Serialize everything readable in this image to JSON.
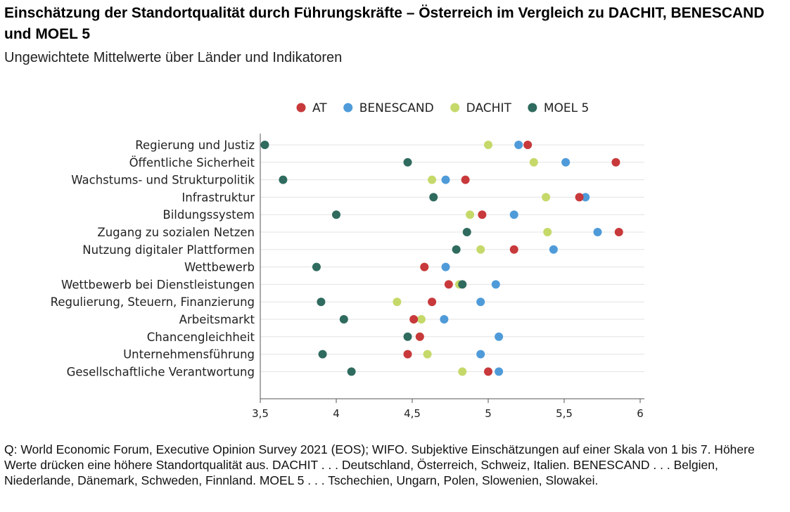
{
  "title": "Einschätzung der Standortqualität durch Führungskräfte – Österreich im Vergleich zu DACHIT, BENESCAND und MOEL 5",
  "subtitle": "Ungewichtete Mittelwerte über Länder und Indikatoren",
  "note": "Q: World Economic Forum, Executive Opinion Survey 2021 (EOS); WIFO. Subjektive Einschätzungen auf einer Skala von 1 bis 7. Höhere Werte drücken eine höhere Standortqualität aus. DACHIT . . . Deutschland, Österreich, Schweiz, Italien. BENESCAND . . . Belgien, Niederlande, Dänemark, Schweden, Finnland. MOEL 5 . . . Tschechien, Ungarn, Polen, Slowenien, Slowakei.",
  "chart_data": {
    "type": "scatter",
    "title": "",
    "xlabel": "",
    "ylabel": "",
    "xlim": [
      3.5,
      6
    ],
    "xticks": [
      3.5,
      4,
      4.5,
      5,
      5.5,
      6
    ],
    "xtick_labels": [
      "3,5",
      "4",
      "4,5",
      "5",
      "5,5",
      "6"
    ],
    "grid": "horizontal",
    "legend_position": "top",
    "categories": [
      "Regierung und Justiz",
      "Öffentliche Sicherheit",
      "Wachstums- und Strukturpolitik",
      "Infrastruktur",
      "Bildungssystem",
      "Zugang zu sozialen Netzen",
      "Nutzung digitaler Plattformen",
      "Wettbewerb",
      "Wettbewerb bei Dienstleistungen",
      "Regulierung, Steuern, Finanzierung",
      "Arbeitsmarkt",
      "Chancengleichheit",
      "Unternehmensführung",
      "Gesellschaftliche Verantwortung"
    ],
    "series": [
      {
        "name": "AT",
        "color": "#c8393b",
        "values": [
          5.26,
          5.84,
          4.85,
          5.6,
          4.96,
          5.86,
          5.17,
          4.58,
          4.74,
          4.63,
          4.51,
          4.55,
          4.47,
          5.0
        ]
      },
      {
        "name": "BENESCAND",
        "color": "#4f9bd9",
        "values": [
          5.2,
          5.51,
          4.72,
          5.64,
          5.17,
          5.72,
          5.43,
          4.72,
          5.05,
          4.95,
          4.71,
          5.07,
          4.95,
          5.07
        ]
      },
      {
        "name": "DACHIT",
        "color": "#c5d96a",
        "values": [
          5.0,
          5.3,
          4.63,
          5.38,
          4.88,
          5.39,
          4.95,
          4.58,
          4.81,
          4.4,
          4.56,
          4.55,
          4.6,
          4.83
        ]
      },
      {
        "name": "MOEL 5",
        "color": "#2f6b5e",
        "values": [
          3.53,
          4.47,
          3.65,
          4.64,
          4.0,
          4.86,
          4.79,
          3.87,
          4.83,
          3.9,
          4.05,
          4.47,
          3.91,
          4.1
        ]
      }
    ]
  }
}
